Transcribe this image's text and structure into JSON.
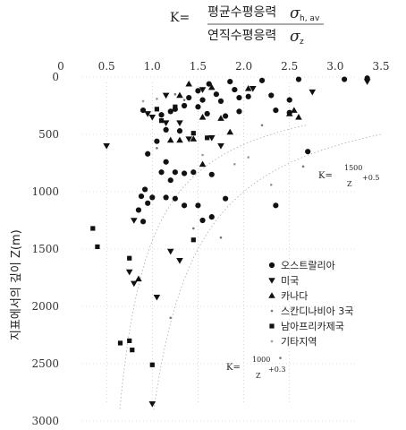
{
  "chart_data": {
    "type": "scatter",
    "title": {
      "k": "K=",
      "numerator_label": "평균수평응력",
      "numerator_symbol": "σ",
      "numerator_sub": "h, av",
      "denominator_label": "연직수평응력",
      "denominator_symbol": "σ",
      "denominator_sub": "z"
    },
    "xlabel": "",
    "ylabel": "지표에서의 깊이 Z(m)",
    "xlim": [
      0,
      3.5
    ],
    "ylim": [
      0,
      3000
    ],
    "y_inverted": true,
    "x_axis_position": "top",
    "x_ticks": [
      "0",
      "0.5",
      "1.0",
      "1.5",
      "2.0",
      "2.5",
      "3.0",
      "3.5"
    ],
    "y_ticks": [
      "0",
      "500",
      "1000",
      "1500",
      "2000",
      "2500",
      "3000"
    ],
    "grid": "dotted",
    "legend_position": "bottom-right",
    "series": [
      {
        "name": "오스트랄리아",
        "marker": "circle",
        "color": "#111111",
        "points": [
          [
            1.5,
            120
          ],
          [
            1.62,
            60
          ],
          [
            1.85,
            40
          ],
          [
            1.9,
            110
          ],
          [
            2.2,
            30
          ],
          [
            2.6,
            20
          ],
          [
            3.1,
            20
          ],
          [
            3.35,
            10
          ],
          [
            1.7,
            150
          ],
          [
            1.4,
            180
          ],
          [
            1.55,
            200
          ],
          [
            1.75,
            210
          ],
          [
            2.3,
            160
          ],
          [
            1.95,
            180
          ],
          [
            2.5,
            200
          ],
          [
            2.05,
            170
          ],
          [
            1.35,
            250
          ],
          [
            1.5,
            260
          ],
          [
            1.25,
            280
          ],
          [
            1.2,
            300
          ],
          [
            1.1,
            330
          ],
          [
            0.9,
            290
          ],
          [
            1.6,
            320
          ],
          [
            1.8,
            340
          ],
          [
            2.35,
            290
          ],
          [
            2.5,
            310
          ],
          [
            1.95,
            300
          ],
          [
            1.15,
            460
          ],
          [
            1.3,
            470
          ],
          [
            1.05,
            560
          ],
          [
            0.95,
            670
          ],
          [
            1.15,
            740
          ],
          [
            1.25,
            830
          ],
          [
            1.45,
            830
          ],
          [
            1.35,
            840
          ],
          [
            1.65,
            850
          ],
          [
            1.1,
            830
          ],
          [
            1.2,
            900
          ],
          [
            0.92,
            980
          ],
          [
            0.88,
            1040
          ],
          [
            1.0,
            1050
          ],
          [
            0.95,
            1100
          ],
          [
            0.85,
            1160
          ],
          [
            1.15,
            1050
          ],
          [
            1.25,
            1060
          ],
          [
            1.35,
            1120
          ],
          [
            1.5,
            1120
          ],
          [
            1.55,
            1250
          ],
          [
            1.65,
            1220
          ],
          [
            1.8,
            1060
          ],
          [
            2.35,
            1120
          ],
          [
            2.7,
            650
          ],
          [
            0.9,
            1260
          ]
        ]
      },
      {
        "name": "미국",
        "marker": "triangle-down",
        "color": "#111111",
        "points": [
          [
            3.35,
            40
          ],
          [
            2.75,
            130
          ],
          [
            1.55,
            110
          ],
          [
            1.0,
            350
          ],
          [
            0.95,
            320
          ],
          [
            1.15,
            400
          ],
          [
            1.3,
            400
          ],
          [
            0.5,
            600
          ],
          [
            1.4,
            540
          ],
          [
            1.65,
            530
          ],
          [
            1.75,
            600
          ],
          [
            0.8,
            1250
          ],
          [
            0.75,
            1700
          ],
          [
            0.8,
            1800
          ],
          [
            1.2,
            1520
          ],
          [
            1.3,
            1600
          ],
          [
            1.05,
            1920
          ],
          [
            1.0,
            2850
          ],
          [
            2.1,
            100
          ],
          [
            1.15,
            160
          ]
        ]
      },
      {
        "name": "카나다",
        "marker": "triangle-up",
        "color": "#111111",
        "points": [
          [
            1.4,
            60
          ],
          [
            1.65,
            90
          ],
          [
            1.3,
            160
          ],
          [
            2.05,
            100
          ],
          [
            1.55,
            350
          ],
          [
            1.75,
            360
          ],
          [
            1.85,
            480
          ],
          [
            1.45,
            540
          ],
          [
            1.2,
            550
          ],
          [
            1.3,
            550
          ],
          [
            1.55,
            760
          ],
          [
            2.55,
            290
          ],
          [
            2.5,
            320
          ],
          [
            2.6,
            350
          ],
          [
            0.85,
            1760
          ]
        ]
      },
      {
        "name": "스칸디나비아 3국",
        "marker": "dot",
        "color": "#777777",
        "points": [
          [
            1.25,
            150
          ],
          [
            1.35,
            200
          ],
          [
            2.2,
            420
          ],
          [
            1.05,
            620
          ],
          [
            2.65,
            780
          ],
          [
            1.45,
            1320
          ],
          [
            1.75,
            1400
          ],
          [
            1.2,
            2100
          ],
          [
            2.4,
            2450
          ]
        ]
      },
      {
        "name": "남아프리카제국",
        "marker": "square",
        "color": "#111111",
        "points": [
          [
            0.35,
            1320
          ],
          [
            0.4,
            1480
          ],
          [
            0.75,
            1580
          ],
          [
            0.65,
            2320
          ],
          [
            0.75,
            2300
          ],
          [
            0.78,
            2380
          ],
          [
            1.0,
            2510
          ],
          [
            1.45,
            1420
          ],
          [
            1.05,
            280
          ],
          [
            1.25,
            260
          ],
          [
            1.45,
            490
          ],
          [
            1.1,
            380
          ],
          [
            1.6,
            530
          ]
        ]
      },
      {
        "name": "기타지역",
        "marker": "dot",
        "color": "#999999",
        "points": [
          [
            0.9,
            210
          ],
          [
            1.05,
            190
          ],
          [
            1.55,
            680
          ],
          [
            1.9,
            760
          ],
          [
            2.05,
            700
          ],
          [
            2.3,
            940
          ]
        ]
      }
    ],
    "curves": [
      {
        "label_k": "K=",
        "label_num": "1500",
        "label_den": "Z",
        "label_add": "+0.5",
        "a": 1500,
        "b": 0.5
      },
      {
        "label_k": "K=",
        "label_num": "1000",
        "label_den": "Z",
        "label_add": "+0.3",
        "a": 1000,
        "b": 0.3
      }
    ]
  }
}
